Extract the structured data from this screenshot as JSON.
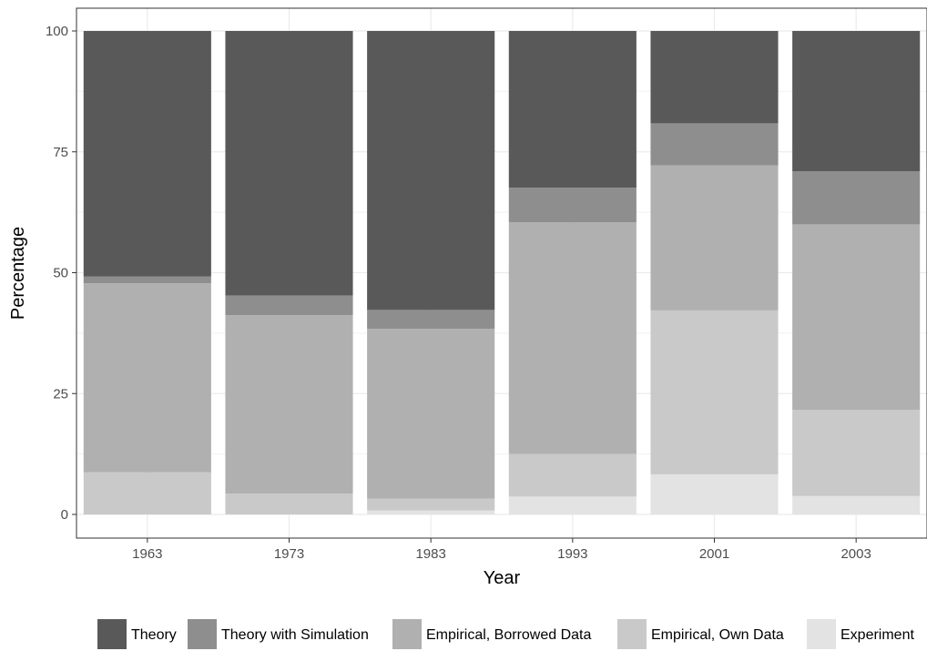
{
  "chart_data": {
    "type": "bar",
    "stacked": true,
    "categories": [
      "1963",
      "1973",
      "1983",
      "1993",
      "2001",
      "2003"
    ],
    "series": [
      {
        "name": "Experiment",
        "color": "#e3e3e3",
        "values": [
          0.0,
          0.0,
          0.8,
          3.7,
          8.3,
          3.8
        ]
      },
      {
        "name": "Empirical, Own Data",
        "color": "#c9c9c9",
        "values": [
          8.7,
          4.3,
          2.5,
          8.8,
          33.9,
          17.8
        ]
      },
      {
        "name": "Empirical, Borrowed Data",
        "color": "#b0b0b0",
        "values": [
          39.1,
          36.9,
          35.1,
          47.9,
          30.0,
          38.4
        ]
      },
      {
        "name": "Theory with Simulation",
        "color": "#8e8e8e",
        "values": [
          1.4,
          4.1,
          3.9,
          7.2,
          8.7,
          11.0
        ]
      },
      {
        "name": "Theory",
        "color": "#595959",
        "values": [
          50.8,
          54.7,
          57.7,
          32.4,
          19.1,
          29.0
        ]
      }
    ],
    "legend_order": [
      "Theory",
      "Theory with Simulation",
      "Empirical, Borrowed Data",
      "Empirical, Own Data",
      "Experiment"
    ],
    "xlabel": "Year",
    "ylabel": "Percentage",
    "ylim": [
      0,
      100
    ],
    "yticks": [
      0,
      25,
      50,
      75,
      100
    ],
    "grid": true,
    "legend_position": "bottom"
  }
}
